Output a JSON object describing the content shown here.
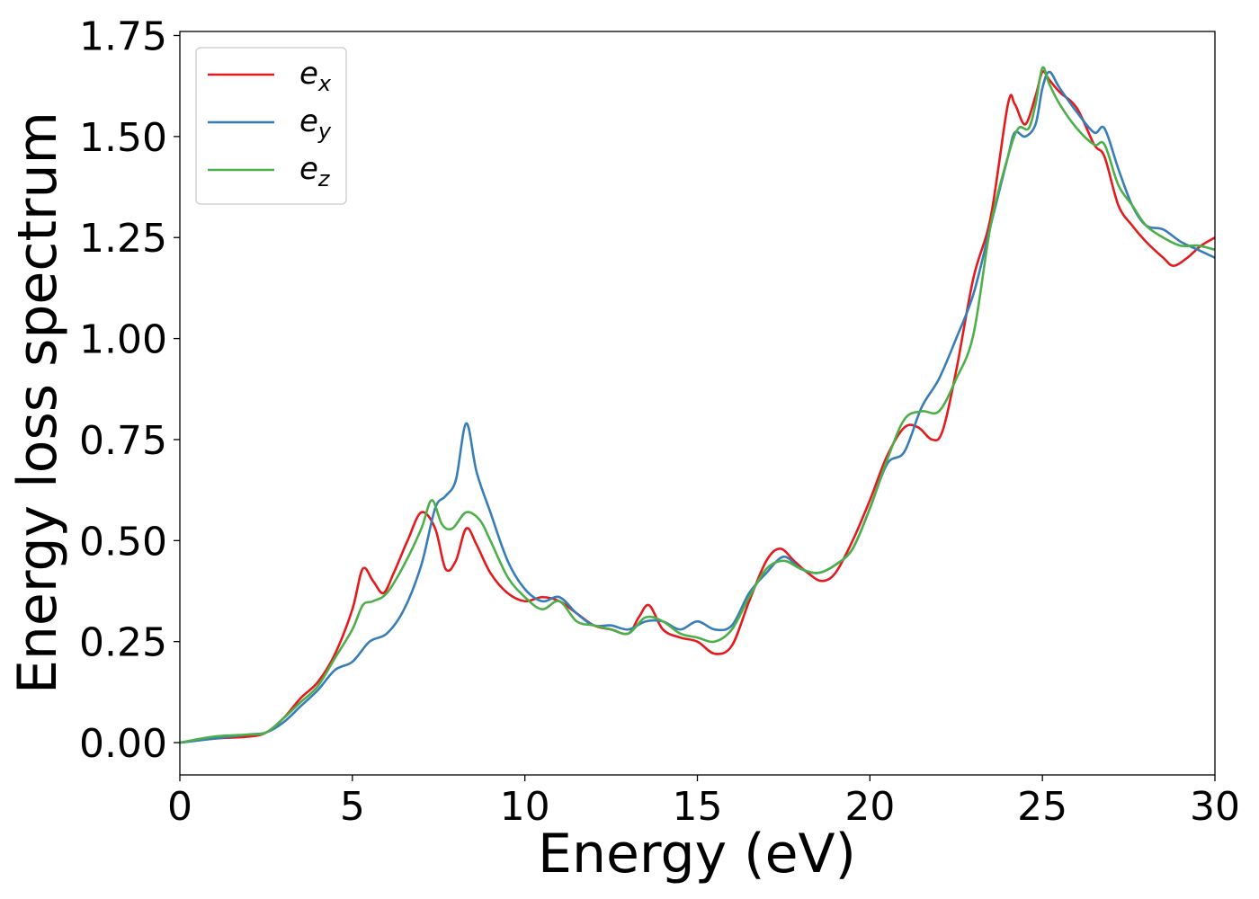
{
  "chart_data": {
    "type": "line",
    "title": "",
    "xlabel": "Energy (eV)",
    "ylabel": "Energy loss spectrum",
    "xlim": [
      0,
      30
    ],
    "ylim": [
      -0.08,
      1.76
    ],
    "xticks": [
      0,
      5,
      10,
      15,
      20,
      25,
      30
    ],
    "xtick_labels": [
      "0",
      "5",
      "10",
      "15",
      "20",
      "25",
      "30"
    ],
    "yticks": [
      0.0,
      0.25,
      0.5,
      0.75,
      1.0,
      1.25,
      1.5,
      1.75
    ],
    "ytick_labels": [
      "0.00",
      "0.25",
      "0.50",
      "0.75",
      "1.00",
      "1.25",
      "1.50",
      "1.75"
    ],
    "grid": false,
    "legend": {
      "placement": "top-left"
    },
    "series": [
      {
        "name": "e_x",
        "label_base": "e",
        "label_sub": "x",
        "color": "#e41a1c",
        "x": [
          0,
          1,
          2,
          2.5,
          3,
          3.5,
          4,
          4.5,
          5,
          5.3,
          5.6,
          5.9,
          6.2,
          6.6,
          7.0,
          7.4,
          7.7,
          8.0,
          8.3,
          8.6,
          9.0,
          9.5,
          10.0,
          10.5,
          11.0,
          11.5,
          12.0,
          12.5,
          13.0,
          13.3,
          13.6,
          14.0,
          14.5,
          15.0,
          15.5,
          16.0,
          16.5,
          17.0,
          17.4,
          17.8,
          18.2,
          18.6,
          19.0,
          19.5,
          20.0,
          20.5,
          21.0,
          21.4,
          21.8,
          22.1,
          22.5,
          23.0,
          23.5,
          24.0,
          24.2,
          24.5,
          24.8,
          25.0,
          25.2,
          25.5,
          26.0,
          26.5,
          26.8,
          27.2,
          27.6,
          28.0,
          28.5,
          28.8,
          29.2,
          29.6,
          30.0
        ],
        "y": [
          0.0,
          0.01,
          0.015,
          0.025,
          0.06,
          0.11,
          0.15,
          0.22,
          0.33,
          0.43,
          0.4,
          0.37,
          0.42,
          0.5,
          0.57,
          0.53,
          0.43,
          0.45,
          0.53,
          0.49,
          0.42,
          0.37,
          0.35,
          0.36,
          0.35,
          0.32,
          0.29,
          0.28,
          0.27,
          0.31,
          0.34,
          0.28,
          0.26,
          0.25,
          0.22,
          0.24,
          0.35,
          0.45,
          0.48,
          0.45,
          0.42,
          0.4,
          0.42,
          0.5,
          0.6,
          0.71,
          0.78,
          0.78,
          0.75,
          0.77,
          0.92,
          1.15,
          1.3,
          1.58,
          1.58,
          1.53,
          1.6,
          1.66,
          1.64,
          1.61,
          1.57,
          1.48,
          1.45,
          1.33,
          1.28,
          1.24,
          1.2,
          1.18,
          1.2,
          1.23,
          1.25
        ]
      },
      {
        "name": "e_y",
        "label_base": "e",
        "label_sub": "y",
        "color": "#377eb8",
        "x": [
          0,
          1,
          2,
          2.5,
          3,
          3.5,
          4,
          4.5,
          5,
          5.5,
          6.0,
          6.5,
          7.0,
          7.4,
          7.7,
          8.0,
          8.3,
          8.6,
          9.0,
          9.5,
          10.0,
          10.5,
          11.0,
          11.5,
          12.0,
          12.5,
          13.0,
          13.5,
          14.0,
          14.5,
          15.0,
          15.5,
          16.0,
          16.5,
          17.0,
          17.5,
          18.0,
          18.5,
          19.0,
          19.5,
          20.0,
          20.5,
          21.0,
          21.5,
          22.0,
          22.5,
          23.0,
          23.5,
          24.0,
          24.2,
          24.5,
          24.8,
          25.0,
          25.2,
          25.5,
          26.0,
          26.5,
          26.8,
          27.2,
          27.6,
          28.0,
          28.5,
          29.0,
          29.5,
          30.0
        ],
        "y": [
          0.0,
          0.01,
          0.02,
          0.025,
          0.05,
          0.09,
          0.13,
          0.18,
          0.2,
          0.25,
          0.27,
          0.33,
          0.44,
          0.58,
          0.61,
          0.65,
          0.79,
          0.67,
          0.57,
          0.45,
          0.38,
          0.35,
          0.36,
          0.32,
          0.29,
          0.29,
          0.28,
          0.3,
          0.3,
          0.28,
          0.3,
          0.28,
          0.29,
          0.37,
          0.42,
          0.46,
          0.43,
          0.42,
          0.44,
          0.48,
          0.58,
          0.69,
          0.72,
          0.83,
          0.9,
          1.0,
          1.11,
          1.28,
          1.45,
          1.51,
          1.5,
          1.53,
          1.62,
          1.66,
          1.62,
          1.56,
          1.51,
          1.52,
          1.42,
          1.33,
          1.28,
          1.27,
          1.24,
          1.22,
          1.2
        ]
      },
      {
        "name": "e_z",
        "label_base": "e",
        "label_sub": "z",
        "color": "#4daf4a",
        "x": [
          0,
          1,
          2,
          2.5,
          3,
          3.5,
          4,
          4.5,
          5,
          5.3,
          5.6,
          6.0,
          6.5,
          7.0,
          7.3,
          7.6,
          7.9,
          8.3,
          8.7,
          9.0,
          9.5,
          10.0,
          10.5,
          11.0,
          11.5,
          12.0,
          12.5,
          13.0,
          13.5,
          14.0,
          14.5,
          15.0,
          15.5,
          16.0,
          16.5,
          17.0,
          17.5,
          18.0,
          18.5,
          19.0,
          19.5,
          20.0,
          20.5,
          21.0,
          21.5,
          22.0,
          22.5,
          23.0,
          23.5,
          24.0,
          24.3,
          24.6,
          24.8,
          25.0,
          25.2,
          25.5,
          26.0,
          26.5,
          26.8,
          27.2,
          27.6,
          28.0,
          28.5,
          29.0,
          29.5,
          30.0
        ],
        "y": [
          0.0,
          0.015,
          0.02,
          0.025,
          0.06,
          0.1,
          0.14,
          0.21,
          0.28,
          0.34,
          0.35,
          0.37,
          0.44,
          0.53,
          0.6,
          0.54,
          0.53,
          0.57,
          0.55,
          0.5,
          0.41,
          0.36,
          0.33,
          0.35,
          0.3,
          0.29,
          0.28,
          0.27,
          0.31,
          0.3,
          0.27,
          0.26,
          0.25,
          0.28,
          0.36,
          0.43,
          0.45,
          0.43,
          0.42,
          0.44,
          0.48,
          0.58,
          0.7,
          0.8,
          0.82,
          0.82,
          0.9,
          1.01,
          1.28,
          1.45,
          1.52,
          1.52,
          1.58,
          1.67,
          1.63,
          1.58,
          1.52,
          1.48,
          1.48,
          1.38,
          1.33,
          1.28,
          1.25,
          1.23,
          1.23,
          1.22
        ]
      }
    ]
  }
}
